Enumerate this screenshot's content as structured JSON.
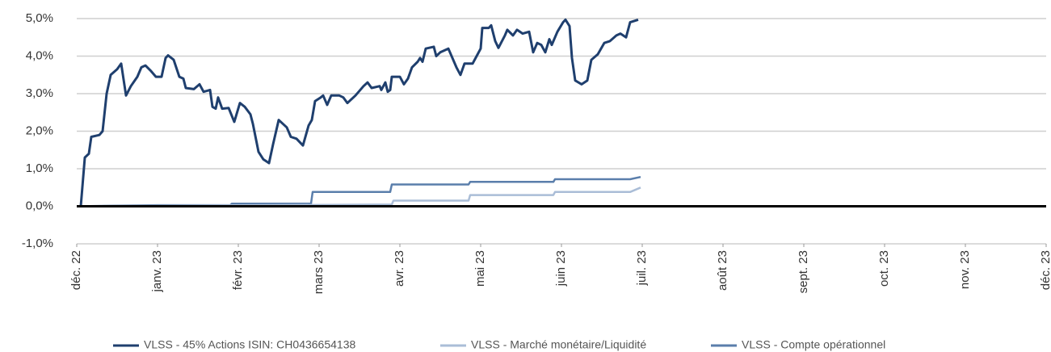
{
  "chart_data": {
    "type": "line",
    "xlim": [
      0,
      12
    ],
    "xticks": [
      {
        "value": 0,
        "label": "déc. 22"
      },
      {
        "value": 1,
        "label": "janv. 23"
      },
      {
        "value": 2,
        "label": "févr. 23"
      },
      {
        "value": 3,
        "label": "mars 23"
      },
      {
        "value": 4,
        "label": "avr. 23"
      },
      {
        "value": 5,
        "label": "mai 23"
      },
      {
        "value": 6,
        "label": "juin 23"
      },
      {
        "value": 7,
        "label": "juil. 23"
      },
      {
        "value": 8,
        "label": "août 23"
      },
      {
        "value": 9,
        "label": "sept. 23"
      },
      {
        "value": 10,
        "label": "oct. 23"
      },
      {
        "value": 11,
        "label": "nov. 23"
      },
      {
        "value": 12,
        "label": "déc. 23"
      }
    ],
    "ylim": [
      -1,
      5
    ],
    "yticks": [
      {
        "value": -1,
        "label": "-1,0%"
      },
      {
        "value": 0,
        "label": "0,0%"
      },
      {
        "value": 1,
        "label": "1,0%"
      },
      {
        "value": 2,
        "label": "2,0%"
      },
      {
        "value": 3,
        "label": "3,0%"
      },
      {
        "value": 4,
        "label": "4,0%"
      },
      {
        "value": 5,
        "label": "5,0%"
      }
    ],
    "grid": true,
    "legend": "bottom",
    "series": [
      {
        "name": "VLSS - 45% Actions ISIN: CH0436654138",
        "color": "#1f3f6e",
        "x": [
          0.05,
          0.1,
          0.15,
          0.18,
          0.28,
          0.32,
          0.37,
          0.42,
          0.5,
          0.55,
          0.61,
          0.67,
          0.75,
          0.8,
          0.85,
          0.92,
          0.98,
          1.05,
          1.1,
          1.13,
          1.2,
          1.27,
          1.32,
          1.35,
          1.45,
          1.52,
          1.57,
          1.65,
          1.68,
          1.72,
          1.75,
          1.8,
          1.88,
          1.95,
          2.02,
          2.08,
          2.15,
          2.18,
          2.25,
          2.31,
          2.38,
          2.43,
          2.5,
          2.55,
          2.6,
          2.65,
          2.72,
          2.8,
          2.87,
          2.91,
          2.95,
          3.02,
          3.05,
          3.1,
          3.15,
          3.25,
          3.3,
          3.35,
          3.45,
          3.55,
          3.6,
          3.65,
          3.75,
          3.77,
          3.82,
          3.85,
          3.88,
          3.9,
          4.0,
          4.05,
          4.1,
          4.15,
          4.22,
          4.25,
          4.28,
          4.32,
          4.42,
          4.45,
          4.5,
          4.6,
          4.7,
          4.75,
          4.8,
          4.9,
          4.95,
          5.0,
          5.02,
          5.1,
          5.13,
          5.18,
          5.22,
          5.3,
          5.33,
          5.4,
          5.45,
          5.52,
          5.6,
          5.65,
          5.7,
          5.75,
          5.8,
          5.85,
          5.88,
          5.95,
          6.02,
          6.05,
          6.1,
          6.13,
          6.17,
          6.25,
          6.32,
          6.37,
          6.45,
          6.53,
          6.6,
          6.68,
          6.73,
          6.8,
          6.85,
          6.95
        ],
        "values": [
          0,
          1.3,
          1.4,
          1.85,
          1.9,
          2.0,
          3.0,
          3.5,
          3.65,
          3.8,
          2.95,
          3.2,
          3.45,
          3.7,
          3.75,
          3.6,
          3.45,
          3.45,
          3.95,
          4.02,
          3.9,
          3.45,
          3.4,
          3.15,
          3.12,
          3.25,
          3.05,
          3.1,
          2.65,
          2.6,
          2.9,
          2.6,
          2.62,
          2.25,
          2.75,
          2.65,
          2.45,
          2.2,
          1.45,
          1.25,
          1.15,
          1.65,
          2.3,
          2.2,
          2.1,
          1.85,
          1.8,
          1.62,
          2.15,
          2.3,
          2.8,
          2.9,
          2.95,
          2.7,
          2.95,
          2.95,
          2.9,
          2.75,
          2.95,
          3.2,
          3.3,
          3.15,
          3.2,
          3.1,
          3.3,
          3.05,
          3.1,
          3.45,
          3.45,
          3.25,
          3.4,
          3.7,
          3.85,
          3.95,
          3.85,
          4.2,
          4.25,
          4.0,
          4.1,
          4.2,
          3.7,
          3.5,
          3.8,
          3.8,
          4.0,
          4.2,
          4.75,
          4.75,
          4.82,
          4.4,
          4.22,
          4.55,
          4.7,
          4.55,
          4.7,
          4.6,
          4.65,
          4.1,
          4.35,
          4.3,
          4.1,
          4.45,
          4.3,
          4.65,
          4.9,
          4.97,
          4.8,
          3.95,
          3.35,
          3.25,
          3.35,
          3.9,
          4.05,
          4.35,
          4.4,
          4.55,
          4.6,
          4.5,
          4.9,
          4.97
        ]
      },
      {
        "name": "VLSS - Marché monétaire/Liquidité",
        "color": "#aabdd7",
        "x": [
          0,
          3.9,
          3.92,
          4.85,
          4.87,
          5.9,
          5.92,
          6.85,
          6.98
        ],
        "values": [
          0,
          0.05,
          0.15,
          0.15,
          0.3,
          0.3,
          0.38,
          0.38,
          0.5
        ]
      },
      {
        "name": "VLSS - Compte opérationnel",
        "color": "#5a7eab",
        "x": [
          0,
          1.0,
          1.9,
          1.92,
          2.9,
          2.92,
          3.88,
          3.9,
          4.85,
          4.87,
          5.9,
          5.92,
          6.85,
          6.98
        ],
        "values": [
          0,
          0.03,
          0.03,
          0.07,
          0.07,
          0.38,
          0.38,
          0.58,
          0.58,
          0.65,
          0.65,
          0.72,
          0.72,
          0.78
        ]
      }
    ]
  }
}
